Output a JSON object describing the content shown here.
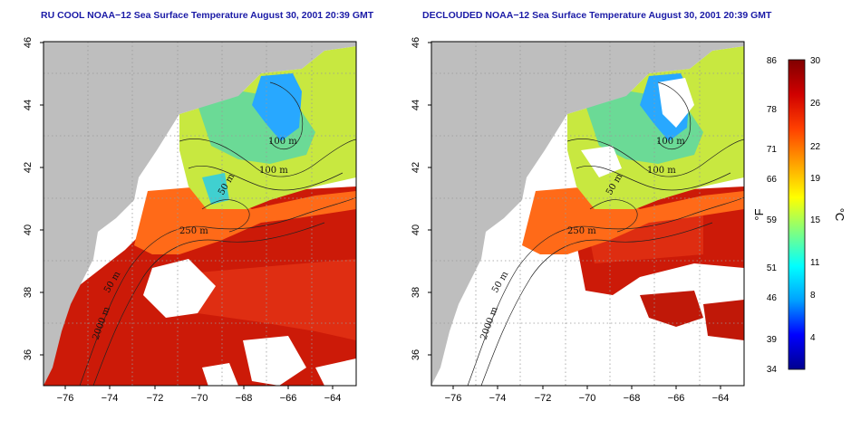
{
  "panels": [
    {
      "title": "RU COOL NOAA−12 Sea Surface Temperature August 30, 2001 20:39 GMT",
      "isobath_labels": [
        "100 m",
        "100 m",
        "50 m",
        "250 m",
        "50 m",
        "2000 m"
      ]
    },
    {
      "title": "DECLOUDED NOAA−12 Sea Surface Temperature August 30, 2001 20:39 GMT",
      "isobath_labels": [
        "100 m",
        "100 m",
        "50 m",
        "250 m",
        "50 m",
        "2000 m"
      ]
    }
  ],
  "axes": {
    "x_ticks": [
      "−76",
      "−74",
      "−72",
      "−70",
      "−68",
      "−66",
      "−64"
    ],
    "y_ticks": [
      "36",
      "38",
      "40",
      "42",
      "44",
      "46"
    ],
    "lon_range": [
      -77.0,
      -63.0
    ],
    "lat_range": [
      35.0,
      46.0
    ],
    "grid": "dotted"
  },
  "colorbar": {
    "fahrenheit_ticks": [
      "86",
      "78",
      "71",
      "66",
      "59",
      "51",
      "46",
      "39",
      "34"
    ],
    "celsius_ticks": [
      "30",
      "26",
      "22",
      "19",
      "15",
      "11",
      "8",
      "4"
    ],
    "fahrenheit_unit": "°F",
    "celsius_unit": "°C",
    "range_c": [
      1,
      30
    ],
    "colors": [
      "#00008f",
      "#0000ff",
      "#00a0ff",
      "#00ffff",
      "#80ff80",
      "#ffff00",
      "#ffa000",
      "#ff4000",
      "#d00000",
      "#800000"
    ]
  },
  "map_colors": {
    "land": "#bebebe",
    "cloud": "#ffffff",
    "warm_offshore": "#cc1a08",
    "gulf_stream": "#e02810",
    "shelf": "#ff6a18",
    "gulf_of_maine": "#c8e840",
    "cold_pool": "#28a8ff"
  }
}
